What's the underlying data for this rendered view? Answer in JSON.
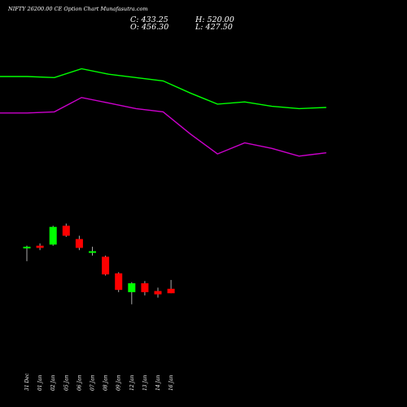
{
  "title": "NIFTY 26200.00 CE Option Chart Munafasutra.com",
  "ohlc": {
    "open": "O: 456.30",
    "high": "H: 520.00",
    "close": "C: 433.25",
    "low": "L: 427.50"
  },
  "colors": {
    "background": "#000000",
    "up_candle": "#00ff00",
    "down_candle": "#ff0000",
    "ma_green": "#00ff00",
    "ma_magenta": "#cc00cc"
  },
  "chart_data": {
    "type": "candlestick",
    "title": "NIFTY 26200.00 CE Option Chart Munafasutra.com",
    "xlabel": "",
    "ylabel": "",
    "categories": [
      "31 Dec",
      "01 Jan",
      "02 Jan",
      "05 Jan",
      "06 Jan",
      "07 Jan",
      "08 Jan",
      "09 Jan",
      "12 Jan",
      "13 Jan",
      "14 Jan",
      "16 Jan"
    ],
    "ohlc": [
      {
        "date": "31 Dec",
        "open": 470,
        "high": 472,
        "low": 458,
        "close": 471
      },
      {
        "date": "01 Jan",
        "open": 472,
        "high": 474,
        "low": 468,
        "close": 470
      },
      {
        "date": "02 Jan",
        "open": 473,
        "high": 490,
        "low": 472,
        "close": 489
      },
      {
        "date": "05 Jan",
        "open": 490,
        "high": 492,
        "low": 480,
        "close": 481
      },
      {
        "date": "06 Jan",
        "open": 478,
        "high": 481,
        "low": 468,
        "close": 470
      },
      {
        "date": "07 Jan",
        "open": 466,
        "high": 471,
        "low": 463,
        "close": 467
      },
      {
        "date": "08 Jan",
        "open": 462,
        "high": 463,
        "low": 445,
        "close": 446
      },
      {
        "date": "09 Jan",
        "open": 447,
        "high": 448,
        "low": 430,
        "close": 432
      },
      {
        "date": "12 Jan",
        "open": 430,
        "high": 439,
        "low": 419,
        "close": 438
      },
      {
        "date": "13 Jan",
        "open": 438,
        "high": 440,
        "low": 427,
        "close": 430
      },
      {
        "date": "14 Jan",
        "open": 431,
        "high": 434,
        "low": 425,
        "close": 428
      },
      {
        "date": "16 Jan",
        "open": 433,
        "high": 441,
        "low": 429,
        "close": 429
      }
    ],
    "overlays": [
      {
        "color": "#00ff00",
        "values": [
          625,
          625,
          624,
          632,
          627,
          624,
          621,
          610,
          600,
          602,
          598,
          596,
          597
        ]
      },
      {
        "color": "#cc00cc",
        "values": [
          592,
          592,
          593,
          606,
          601,
          596,
          593,
          573,
          555,
          565,
          560,
          553,
          556
        ]
      }
    ],
    "overlay_x": [
      "",
      "31 Dec",
      "02 Jan",
      "05 Jan",
      "07 Jan",
      "09 Jan",
      "12 Jan",
      "13 Jan",
      "14 Jan",
      "16 Jan",
      "",
      "",
      ""
    ],
    "ylim": [
      385,
      650
    ]
  }
}
